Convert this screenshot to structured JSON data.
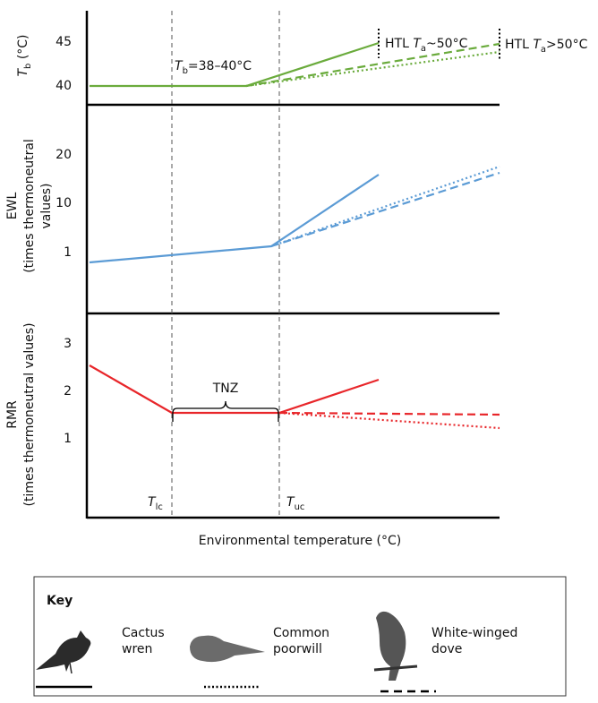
{
  "panels": [
    {
      "y_label": {
        "symbol": "T",
        "sub": "b",
        "rest": " (°C)"
      },
      "ticks": [
        "45",
        "40"
      ],
      "annotations": {
        "body_temp": {
          "symbol": "T",
          "sub": "b",
          "rest": "=38–40°C"
        },
        "htl_wren": {
          "prefix": "HTL ",
          "symbol": "T",
          "sub": "a",
          "rest": "~50°C"
        },
        "htl_others": {
          "prefix": "HTL ",
          "symbol": "T",
          "sub": "a",
          "rest": ">50°C"
        }
      }
    },
    {
      "y_label": [
        "EWL",
        "(times thermoneutral",
        "values)"
      ],
      "ticks": [
        "20",
        "10",
        "1"
      ]
    },
    {
      "y_label": [
        "RMR",
        "(times thermoneutral values)"
      ],
      "ticks": [
        "3",
        "2",
        "1"
      ],
      "annotations": {
        "zone": "TNZ",
        "lower": {
          "symbol": "T",
          "sub": "lc"
        },
        "upper": {
          "symbol": "T",
          "sub": "uc"
        }
      }
    }
  ],
  "x_label": "Environmental temperature (°C)",
  "key": {
    "title": "Key",
    "items": [
      [
        "Cactus",
        "wren"
      ],
      [
        "Common",
        "poorwill"
      ],
      [
        "White-winged",
        "dove"
      ]
    ]
  }
}
